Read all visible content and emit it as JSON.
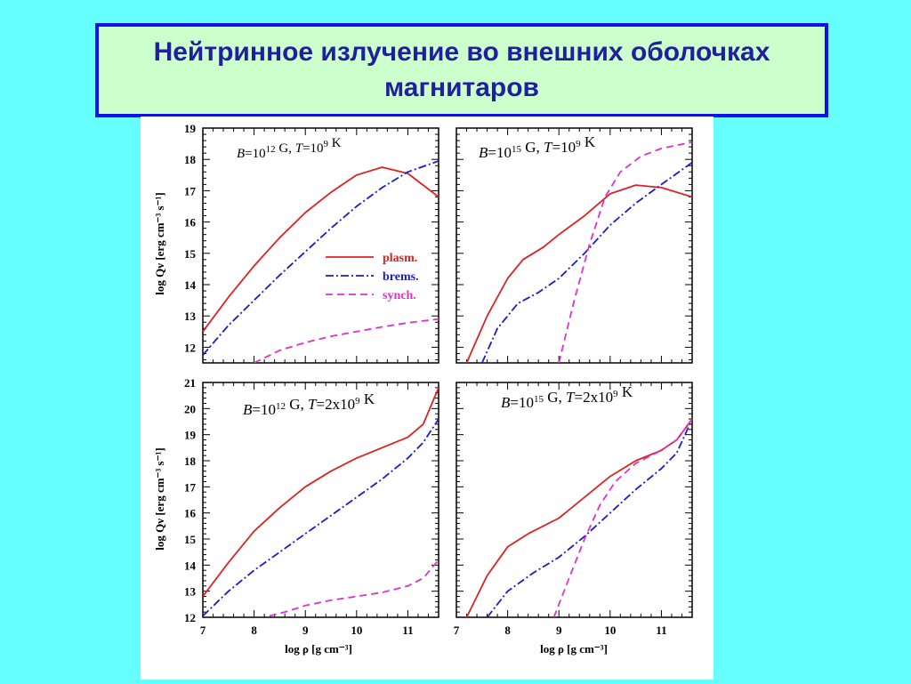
{
  "header": {
    "title_line1": "Нейтринное излучение во внешних оболочках",
    "title_line2": "магнитаров"
  },
  "colors": {
    "background": "#66ffff",
    "title_box_bg": "#ccffcc",
    "title_box_border": "#1010e8",
    "title_text": "#1f1f9f",
    "plasm": "#dd2222",
    "brems": "#1a1ad0",
    "synch": "#e030d0"
  },
  "legend": {
    "plasm": "plasm.",
    "brems": "brems.",
    "synch": "synch."
  },
  "axes": {
    "ylabel": "log Qν [erg cm⁻³ s⁻¹]",
    "xlabel": "log ρ [g cm⁻³]"
  },
  "chart_data": [
    {
      "type": "line",
      "label": {
        "B_value": "10",
        "B_exp": "12",
        "T_mant": "10",
        "T_exp": "9",
        "T_prefix": ""
      },
      "xlim": [
        7,
        11.6
      ],
      "ylim": [
        11.5,
        19
      ],
      "x_ticks": [
        "7",
        "8",
        "9",
        "10",
        "11"
      ],
      "y_ticks": [
        "12",
        "13",
        "14",
        "15",
        "16",
        "17",
        "18",
        "19"
      ],
      "series": [
        {
          "name": "plasm.",
          "x": [
            7,
            7.5,
            8,
            8.5,
            9,
            9.5,
            10,
            10.5,
            11,
            11.6
          ],
          "y": [
            12.5,
            13.6,
            14.6,
            15.5,
            16.3,
            16.95,
            17.5,
            17.75,
            17.55,
            16.8
          ]
        },
        {
          "name": "brems.",
          "x": [
            7,
            7.5,
            8,
            8.5,
            9,
            9.5,
            10,
            10.5,
            11,
            11.6
          ],
          "y": [
            11.75,
            12.7,
            13.5,
            14.3,
            15.05,
            15.8,
            16.5,
            17.1,
            17.6,
            17.95
          ]
        },
        {
          "name": "synch.",
          "x": [
            8,
            8.5,
            9,
            9.5,
            10,
            10.5,
            11,
            11.6
          ],
          "y": [
            11.5,
            11.9,
            12.15,
            12.35,
            12.5,
            12.65,
            12.78,
            12.9
          ]
        }
      ]
    },
    {
      "type": "line",
      "label": {
        "B_value": "10",
        "B_exp": "15",
        "T_mant": "10",
        "T_exp": "9",
        "T_prefix": ""
      },
      "xlim": [
        7,
        11.6
      ],
      "ylim": [
        11.5,
        19
      ],
      "x_ticks": [
        "7",
        "8",
        "9",
        "10",
        "11"
      ],
      "y_ticks": [
        "12",
        "13",
        "14",
        "15",
        "16",
        "17",
        "18",
        "19"
      ],
      "series": [
        {
          "name": "plasm.",
          "x": [
            7.2,
            7.6,
            8,
            8.3,
            8.7,
            9,
            9.5,
            10,
            10.5,
            11,
            11.6
          ],
          "y": [
            11.5,
            13.0,
            14.2,
            14.8,
            15.2,
            15.6,
            16.2,
            16.9,
            17.18,
            17.1,
            16.8
          ]
        },
        {
          "name": "brems.",
          "x": [
            7.5,
            7.8,
            8.2,
            8.6,
            9,
            9.5,
            10,
            10.5,
            11,
            11.6
          ],
          "y": [
            11.5,
            12.6,
            13.4,
            13.75,
            14.2,
            15.0,
            15.9,
            16.6,
            17.2,
            17.9
          ]
        },
        {
          "name": "synch.",
          "x": [
            9,
            9.3,
            9.6,
            9.9,
            10.2,
            10.6,
            11,
            11.6
          ],
          "y": [
            11.5,
            13.5,
            15.3,
            16.8,
            17.6,
            18.1,
            18.35,
            18.55
          ]
        }
      ]
    },
    {
      "type": "line",
      "label": {
        "B_value": "10",
        "B_exp": "12",
        "T_mant": "10",
        "T_exp": "9",
        "T_prefix": "2x"
      },
      "xlim": [
        7,
        11.6
      ],
      "ylim": [
        12,
        21
      ],
      "x_ticks": [
        "7",
        "8",
        "9",
        "10",
        "11"
      ],
      "y_ticks": [
        "12",
        "13",
        "14",
        "15",
        "16",
        "17",
        "18",
        "19",
        "20",
        "21"
      ],
      "series": [
        {
          "name": "plasm.",
          "x": [
            7,
            7.5,
            8,
            8.5,
            9,
            9.5,
            10,
            10.5,
            11,
            11.3,
            11.6
          ],
          "y": [
            12.8,
            14.1,
            15.3,
            16.2,
            17.0,
            17.6,
            18.1,
            18.5,
            18.9,
            19.4,
            20.8
          ]
        },
        {
          "name": "brems.",
          "x": [
            7,
            7.5,
            8,
            8.5,
            9,
            9.5,
            10,
            10.5,
            11,
            11.3,
            11.6
          ],
          "y": [
            12.05,
            13.0,
            13.8,
            14.5,
            15.2,
            15.9,
            16.6,
            17.3,
            18.1,
            18.7,
            19.6
          ]
        },
        {
          "name": "synch.",
          "x": [
            8.3,
            8.6,
            9,
            9.5,
            10,
            10.5,
            11,
            11.3,
            11.6
          ],
          "y": [
            12.05,
            12.2,
            12.45,
            12.65,
            12.8,
            12.95,
            13.2,
            13.5,
            14.2
          ]
        }
      ]
    },
    {
      "type": "line",
      "label": {
        "B_value": "10",
        "B_exp": "15",
        "T_mant": "10",
        "T_exp": "9",
        "T_prefix": "2x"
      },
      "xlim": [
        7,
        11.6
      ],
      "ylim": [
        12,
        21
      ],
      "x_ticks": [
        "7",
        "8",
        "9",
        "10",
        "11"
      ],
      "y_ticks": [
        "12",
        "13",
        "14",
        "15",
        "16",
        "17",
        "18",
        "19",
        "20",
        "21"
      ],
      "series": [
        {
          "name": "plasm.",
          "x": [
            7.2,
            7.6,
            8,
            8.4,
            9,
            9.5,
            10,
            10.5,
            11,
            11.3,
            11.6
          ],
          "y": [
            12.0,
            13.6,
            14.7,
            15.2,
            15.8,
            16.6,
            17.4,
            18.0,
            18.4,
            18.8,
            19.6
          ]
        },
        {
          "name": "brems.",
          "x": [
            7.6,
            8,
            8.5,
            9,
            9.5,
            10,
            10.5,
            11,
            11.3,
            11.6
          ],
          "y": [
            12.0,
            13.0,
            13.7,
            14.3,
            15.1,
            16.0,
            16.9,
            17.7,
            18.3,
            19.6
          ]
        },
        {
          "name": "synch.",
          "x": [
            8.9,
            9.2,
            9.5,
            9.8,
            10.1,
            10.5,
            11,
            11.3,
            11.6
          ],
          "y": [
            12.0,
            13.5,
            15.0,
            16.3,
            17.2,
            17.9,
            18.4,
            18.8,
            19.6
          ]
        }
      ]
    }
  ]
}
